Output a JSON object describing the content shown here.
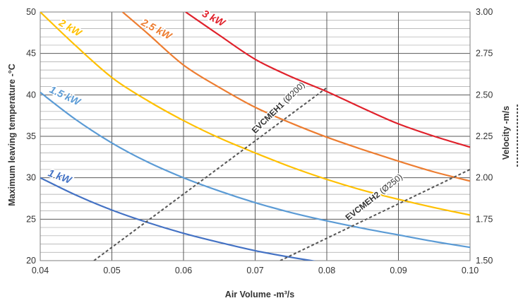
{
  "chart_data": {
    "type": "line",
    "xlabel": "Air Volume  -m³/s",
    "ylabel": "Maximum  leaving temperature  -°C",
    "y2label": "Velocity  -m/s",
    "xlim": [
      0.04,
      0.1
    ],
    "ylim": [
      20,
      50
    ],
    "y2lim": [
      1.5,
      3.0
    ],
    "xticks": [
      "0.04",
      "0.05",
      "0.06",
      "0.07",
      "0.08",
      "0.09",
      "0.10"
    ],
    "yticks": [
      "20",
      "25",
      "30",
      "35",
      "40",
      "45",
      "50"
    ],
    "y2ticks": [
      "1.50",
      "1.75",
      "2.00",
      "2.25",
      "2.50",
      "2.75",
      "3.00"
    ],
    "grid": true,
    "series": [
      {
        "name": "1 kW",
        "axis": "left",
        "color": "#4472c4",
        "x": [
          0.04,
          0.045,
          0.05,
          0.055,
          0.06,
          0.065,
          0.07,
          0.075,
          0.08
        ],
        "y": [
          30.0,
          27.9,
          26.1,
          24.6,
          23.3,
          22.2,
          21.2,
          20.4,
          19.7
        ]
      },
      {
        "name": "1.5 kW",
        "axis": "left",
        "color": "#5b9bd5",
        "x": [
          0.04,
          0.045,
          0.05,
          0.055,
          0.06,
          0.065,
          0.07,
          0.075,
          0.08,
          0.085,
          0.09,
          0.095,
          0.1
        ],
        "y": [
          40.3,
          37.0,
          34.2,
          31.9,
          30.0,
          28.4,
          27.0,
          25.8,
          24.8,
          23.9,
          23.1,
          22.3,
          21.6
        ]
      },
      {
        "name": "2 kW",
        "axis": "left",
        "color": "#ffc000",
        "x": [
          0.04,
          0.045,
          0.05,
          0.055,
          0.06,
          0.065,
          0.07,
          0.075,
          0.08,
          0.085,
          0.09,
          0.095,
          0.1
        ],
        "y": [
          50.0,
          45.9,
          42.1,
          39.3,
          36.9,
          34.8,
          33.0,
          31.3,
          29.8,
          28.5,
          27.4,
          26.4,
          25.5
        ]
      },
      {
        "name": "2.5 kW",
        "axis": "left",
        "color": "#ed7d31",
        "x": [
          0.0515,
          0.055,
          0.06,
          0.065,
          0.07,
          0.075,
          0.08,
          0.085,
          0.09,
          0.095,
          0.1
        ],
        "y": [
          50.0,
          47.4,
          43.6,
          40.9,
          38.5,
          36.6,
          34.9,
          33.4,
          32.0,
          30.7,
          29.6
        ]
      },
      {
        "name": "3 kW",
        "axis": "left",
        "color": "#e0212b",
        "x": [
          0.0603,
          0.065,
          0.07,
          0.075,
          0.08,
          0.085,
          0.09,
          0.095,
          0.1
        ],
        "y": [
          50.0,
          47.2,
          44.3,
          42.2,
          40.4,
          38.4,
          36.5,
          35.0,
          33.7
        ]
      },
      {
        "name": "EVCMEH1 (Ø200)",
        "axis": "right",
        "color": "#555555",
        "dashed": true,
        "x": [
          0.0475,
          0.0799
        ],
        "y": [
          1.5,
          2.54
        ]
      },
      {
        "name": "EVCMEH2 (Ø250)",
        "axis": "right",
        "color": "#555555",
        "dashed": true,
        "x": [
          0.0735,
          0.1
        ],
        "y": [
          1.5,
          2.05
        ]
      }
    ],
    "labels": [
      {
        "series": "1 kW",
        "text": "1 kW"
      },
      {
        "series": "1.5 kW",
        "text": "1.5 kW"
      },
      {
        "series": "2 kW",
        "text": "2 kW"
      },
      {
        "series": "2.5 kW",
        "text": "2.5 kW"
      },
      {
        "series": "3 kW",
        "text": "3 kW"
      },
      {
        "series": "EVCMEH1 (Ø200)",
        "bold": "EVCMEH1",
        "rest": " (Ø200)"
      },
      {
        "series": "EVCMEH2 (Ø250)",
        "bold": "EVCMEH2",
        "rest": " (Ø250)"
      }
    ]
  }
}
